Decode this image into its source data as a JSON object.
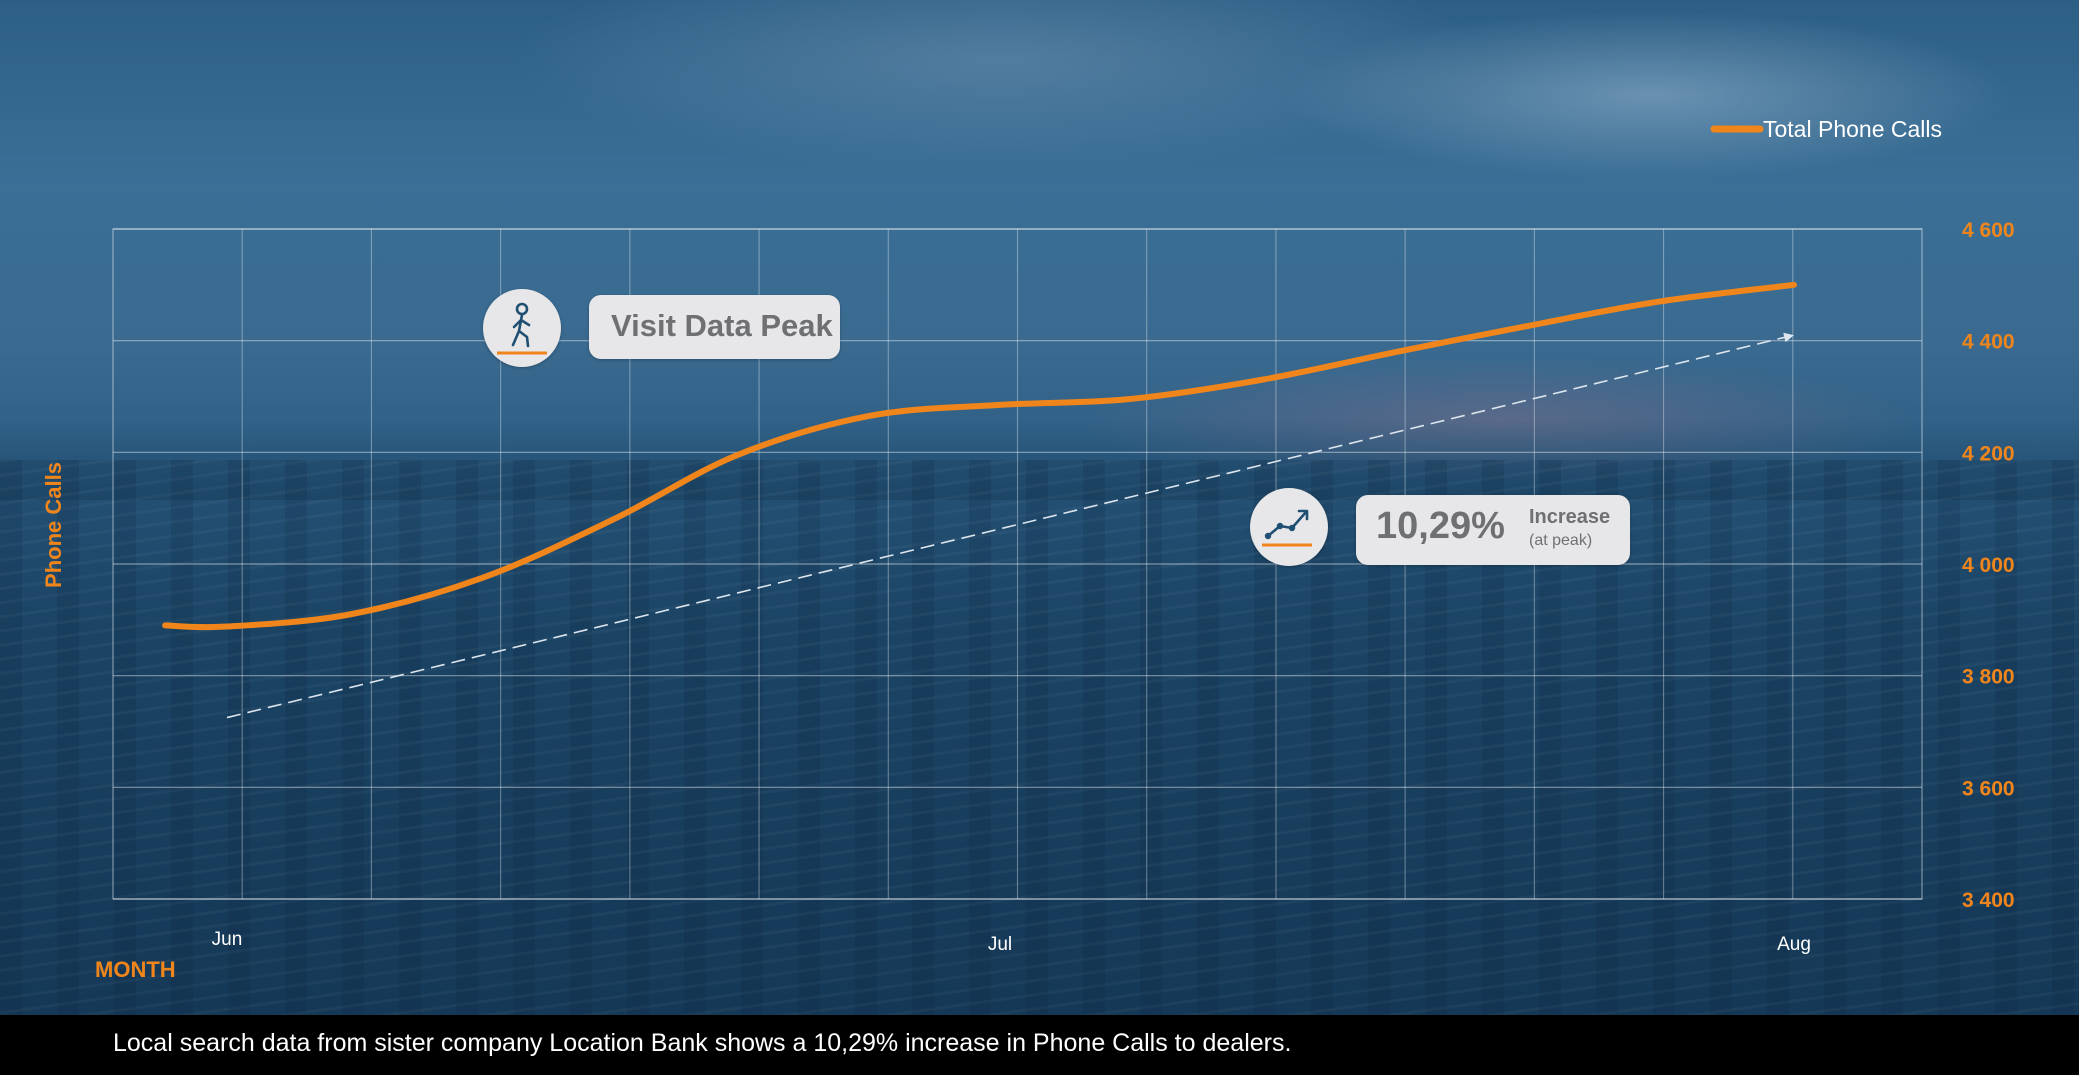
{
  "chart_data": {
    "type": "line",
    "x_categories": [
      "Jun",
      "Jul",
      "Aug"
    ],
    "x_tick_positions": [
      0,
      1,
      2
    ],
    "series": [
      {
        "name": "Total Phone Calls",
        "color": "#f0861b",
        "points": [
          {
            "x": -0.08,
            "y": 3890
          },
          {
            "x": 0.0,
            "y": 3888
          },
          {
            "x": 0.16,
            "y": 3910
          },
          {
            "x": 0.33,
            "y": 3975
          },
          {
            "x": 0.5,
            "y": 4080
          },
          {
            "x": 0.66,
            "y": 4195
          },
          {
            "x": 0.83,
            "y": 4265
          },
          {
            "x": 1.0,
            "y": 4285
          },
          {
            "x": 1.16,
            "y": 4295
          },
          {
            "x": 1.33,
            "y": 4330
          },
          {
            "x": 1.5,
            "y": 4380
          },
          {
            "x": 1.66,
            "y": 4425
          },
          {
            "x": 1.83,
            "y": 4470
          },
          {
            "x": 2.0,
            "y": 4500
          }
        ]
      }
    ],
    "trend_line": {
      "start": {
        "x": 0.0,
        "y": 3725
      },
      "end": {
        "x": 2.0,
        "y": 4410
      },
      "style": "dashed",
      "color": "#dde6ee"
    },
    "y_ticks": [
      3400,
      3600,
      3800,
      4000,
      4200,
      4400,
      4600
    ],
    "y_tick_labels": [
      "3 400",
      "3 600",
      "3 800",
      "4 000",
      "4 200",
      "4 400",
      "4 600"
    ],
    "ylim": [
      3400,
      4600
    ],
    "xlabel": "MONTH",
    "ylabel": "Phone Calls",
    "y_axis_side": "right",
    "grid": true,
    "legend": {
      "position": "top-right",
      "entries": [
        "Total Phone Calls"
      ]
    },
    "annotations": [
      {
        "id": "visit-peak",
        "text": "Visit Data Peak",
        "icon": "walking-person-icon"
      },
      {
        "id": "increase",
        "value": "10,29%",
        "label": "Increase",
        "note": "(at peak)",
        "icon": "trend-up-icon"
      }
    ]
  },
  "footer": {
    "text": "Local search data from sister company Location Bank shows a 10,29% increase in Phone Calls to dealers."
  },
  "colors": {
    "accent": "#f0861b",
    "callout_bg": "#e7e7e9",
    "callout_text": "#6f7072",
    "icon_stroke": "#1f4f73"
  }
}
